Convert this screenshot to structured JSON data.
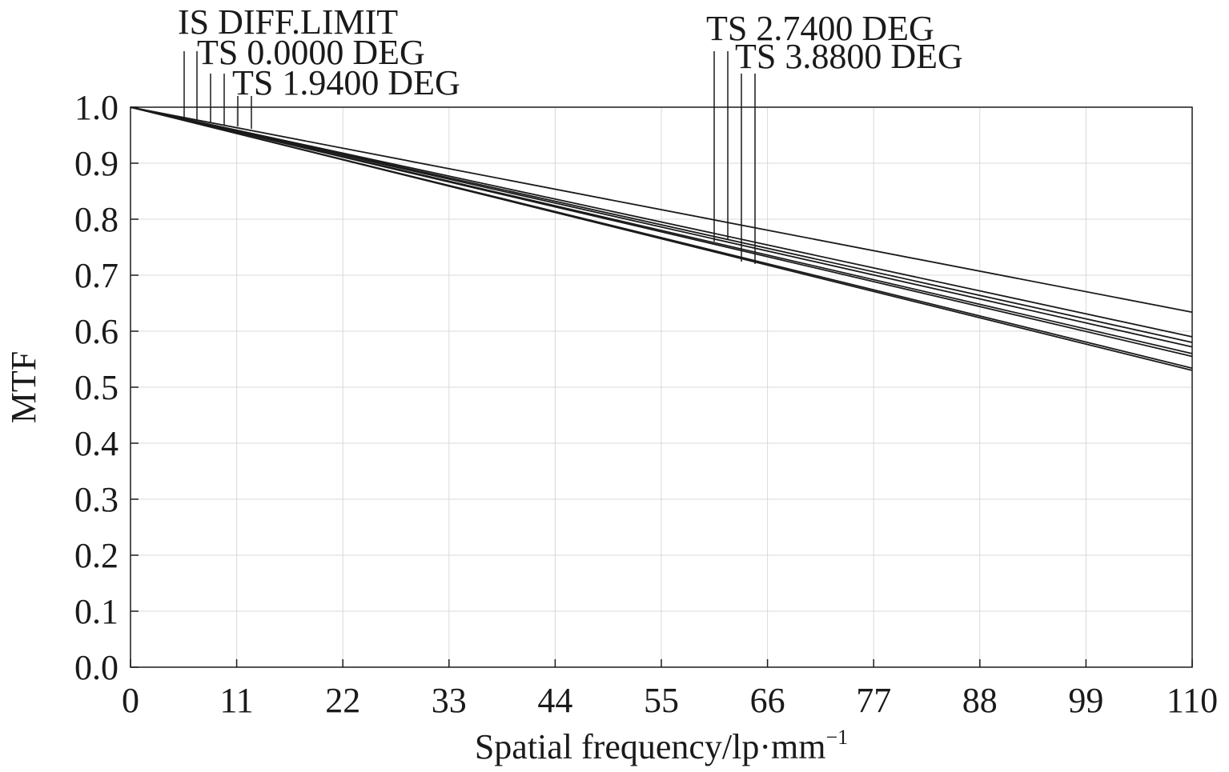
{
  "chart_data": {
    "type": "line",
    "title": "",
    "xlabel": "Spatial frequency/lp·mm",
    "xlabel_superscript": "−1",
    "ylabel": "MTF",
    "xlim": [
      0,
      110
    ],
    "ylim": [
      0,
      1.0
    ],
    "x_ticks": [
      "0",
      "11",
      "22",
      "33",
      "44",
      "55",
      "66",
      "77",
      "88",
      "99",
      "110"
    ],
    "y_ticks": [
      "0.0",
      "0.1",
      "0.2",
      "0.3",
      "0.4",
      "0.5",
      "0.6",
      "0.7",
      "0.8",
      "0.9",
      "1.0"
    ],
    "grid": true,
    "legend": {
      "left": [
        "IS DIFF.LIMIT",
        "TS 0.0000 DEG",
        "TS 1.9400 DEG"
      ],
      "right": [
        "TS 2.7400 DEG",
        "TS 3.8800 DEG"
      ]
    },
    "series": [
      {
        "x": [
          0,
          110
        ],
        "y": [
          1.0,
          0.634
        ]
      },
      {
        "x": [
          0,
          110
        ],
        "y": [
          1.0,
          0.59
        ]
      },
      {
        "x": [
          0,
          110
        ],
        "y": [
          1.0,
          0.58
        ]
      },
      {
        "x": [
          0,
          110
        ],
        "y": [
          1.0,
          0.572
        ]
      },
      {
        "x": [
          0,
          110
        ],
        "y": [
          1.0,
          0.56
        ]
      },
      {
        "x": [
          0,
          110
        ],
        "y": [
          1.0,
          0.555
        ]
      },
      {
        "x": [
          0,
          110
        ],
        "y": [
          1.0,
          0.534
        ]
      },
      {
        "x": [
          0,
          110
        ],
        "y": [
          1.0,
          0.53
        ]
      }
    ],
    "colors": {
      "line": "#1a1a1a",
      "grid": "#d9d9d9",
      "background": "#ffffff"
    }
  }
}
